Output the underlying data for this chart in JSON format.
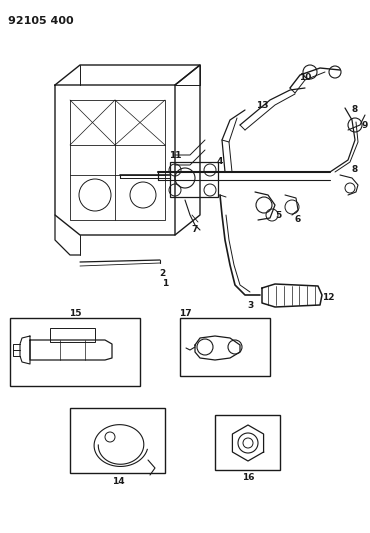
{
  "title": "92105 400",
  "bg": "#ffffff",
  "lc": "#1a1a1a",
  "fig_w": 3.7,
  "fig_h": 5.33,
  "dpi": 100
}
